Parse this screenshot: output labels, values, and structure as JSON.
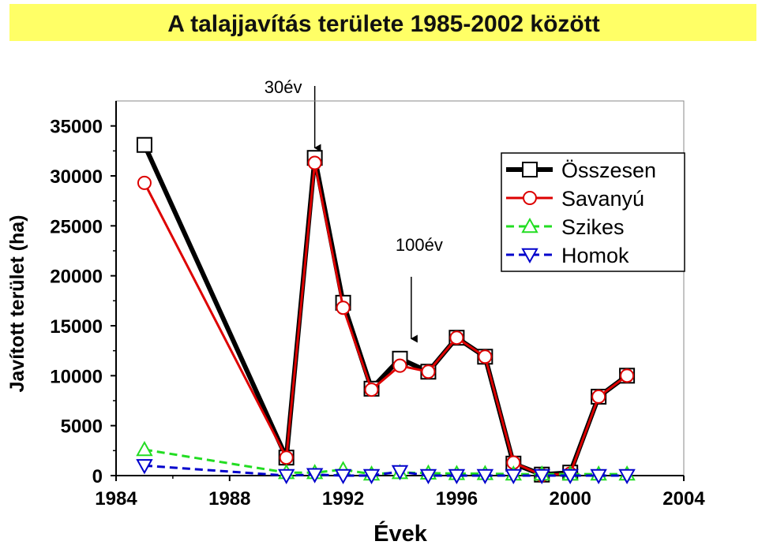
{
  "chart_data": {
    "type": "line",
    "title": "A talajjavítás területe 1985-2002 között",
    "xlabel": "Évek",
    "ylabel": "Javított terület (ha)",
    "xlim": [
      1984,
      2004
    ],
    "ylim": [
      0,
      37500
    ],
    "x_ticks": [
      1984,
      1988,
      1992,
      1996,
      2000,
      2004
    ],
    "y_ticks": [
      0,
      5000,
      10000,
      15000,
      20000,
      25000,
      30000,
      35000
    ],
    "legend_position": "top-right",
    "annotations": [
      {
        "text": "30év",
        "x": 1991,
        "y_text": 39000,
        "arrow_from": 39000,
        "arrow_to": 32800
      },
      {
        "text": "100év",
        "x": 1994.4,
        "y_text": 23000,
        "arrow_from": 19900,
        "arrow_to": 13700
      }
    ],
    "series": [
      {
        "name": "Összesen",
        "color": "#000000",
        "marker": "square",
        "dash": "solid",
        "width": 6,
        "x": [
          1985,
          1990,
          1991,
          1992,
          1993,
          1994,
          1995,
          1996,
          1997,
          1998,
          1999,
          2000,
          2001,
          2002
        ],
        "y": [
          33100,
          1800,
          31800,
          17300,
          8700,
          11700,
          10400,
          13800,
          11900,
          1200,
          100,
          300,
          7900,
          10000
        ]
      },
      {
        "name": "Savanyú",
        "color": "#dd0000",
        "marker": "circle",
        "dash": "solid",
        "width": 3,
        "x": [
          1985,
          1990,
          1991,
          1992,
          1993,
          1994,
          1995,
          1996,
          1997,
          1998,
          1999,
          2000,
          2001,
          2002
        ],
        "y": [
          29300,
          1800,
          31300,
          16800,
          8600,
          11000,
          10400,
          13800,
          11900,
          1300,
          50,
          200,
          7900,
          10000
        ]
      },
      {
        "name": "Szikes",
        "color": "#22dd22",
        "marker": "triangle-up",
        "dash": "dashed",
        "width": 3,
        "x": [
          1985,
          1990,
          1991,
          1992,
          1993,
          1994,
          1995,
          1996,
          1997,
          1998,
          1999,
          2000,
          2001,
          2002
        ],
        "y": [
          2600,
          300,
          300,
          600,
          150,
          300,
          250,
          200,
          200,
          150,
          150,
          150,
          150,
          150
        ]
      },
      {
        "name": "Homok",
        "color": "#0000cc",
        "marker": "triangle-down",
        "dash": "dashed",
        "width": 3,
        "x": [
          1985,
          1990,
          1991,
          1992,
          1993,
          1994,
          1995,
          1996,
          1997,
          1998,
          1999,
          2000,
          2001,
          2002
        ],
        "y": [
          1000,
          0,
          100,
          0,
          0,
          400,
          0,
          0,
          0,
          0,
          0,
          0,
          0,
          0
        ]
      }
    ]
  }
}
